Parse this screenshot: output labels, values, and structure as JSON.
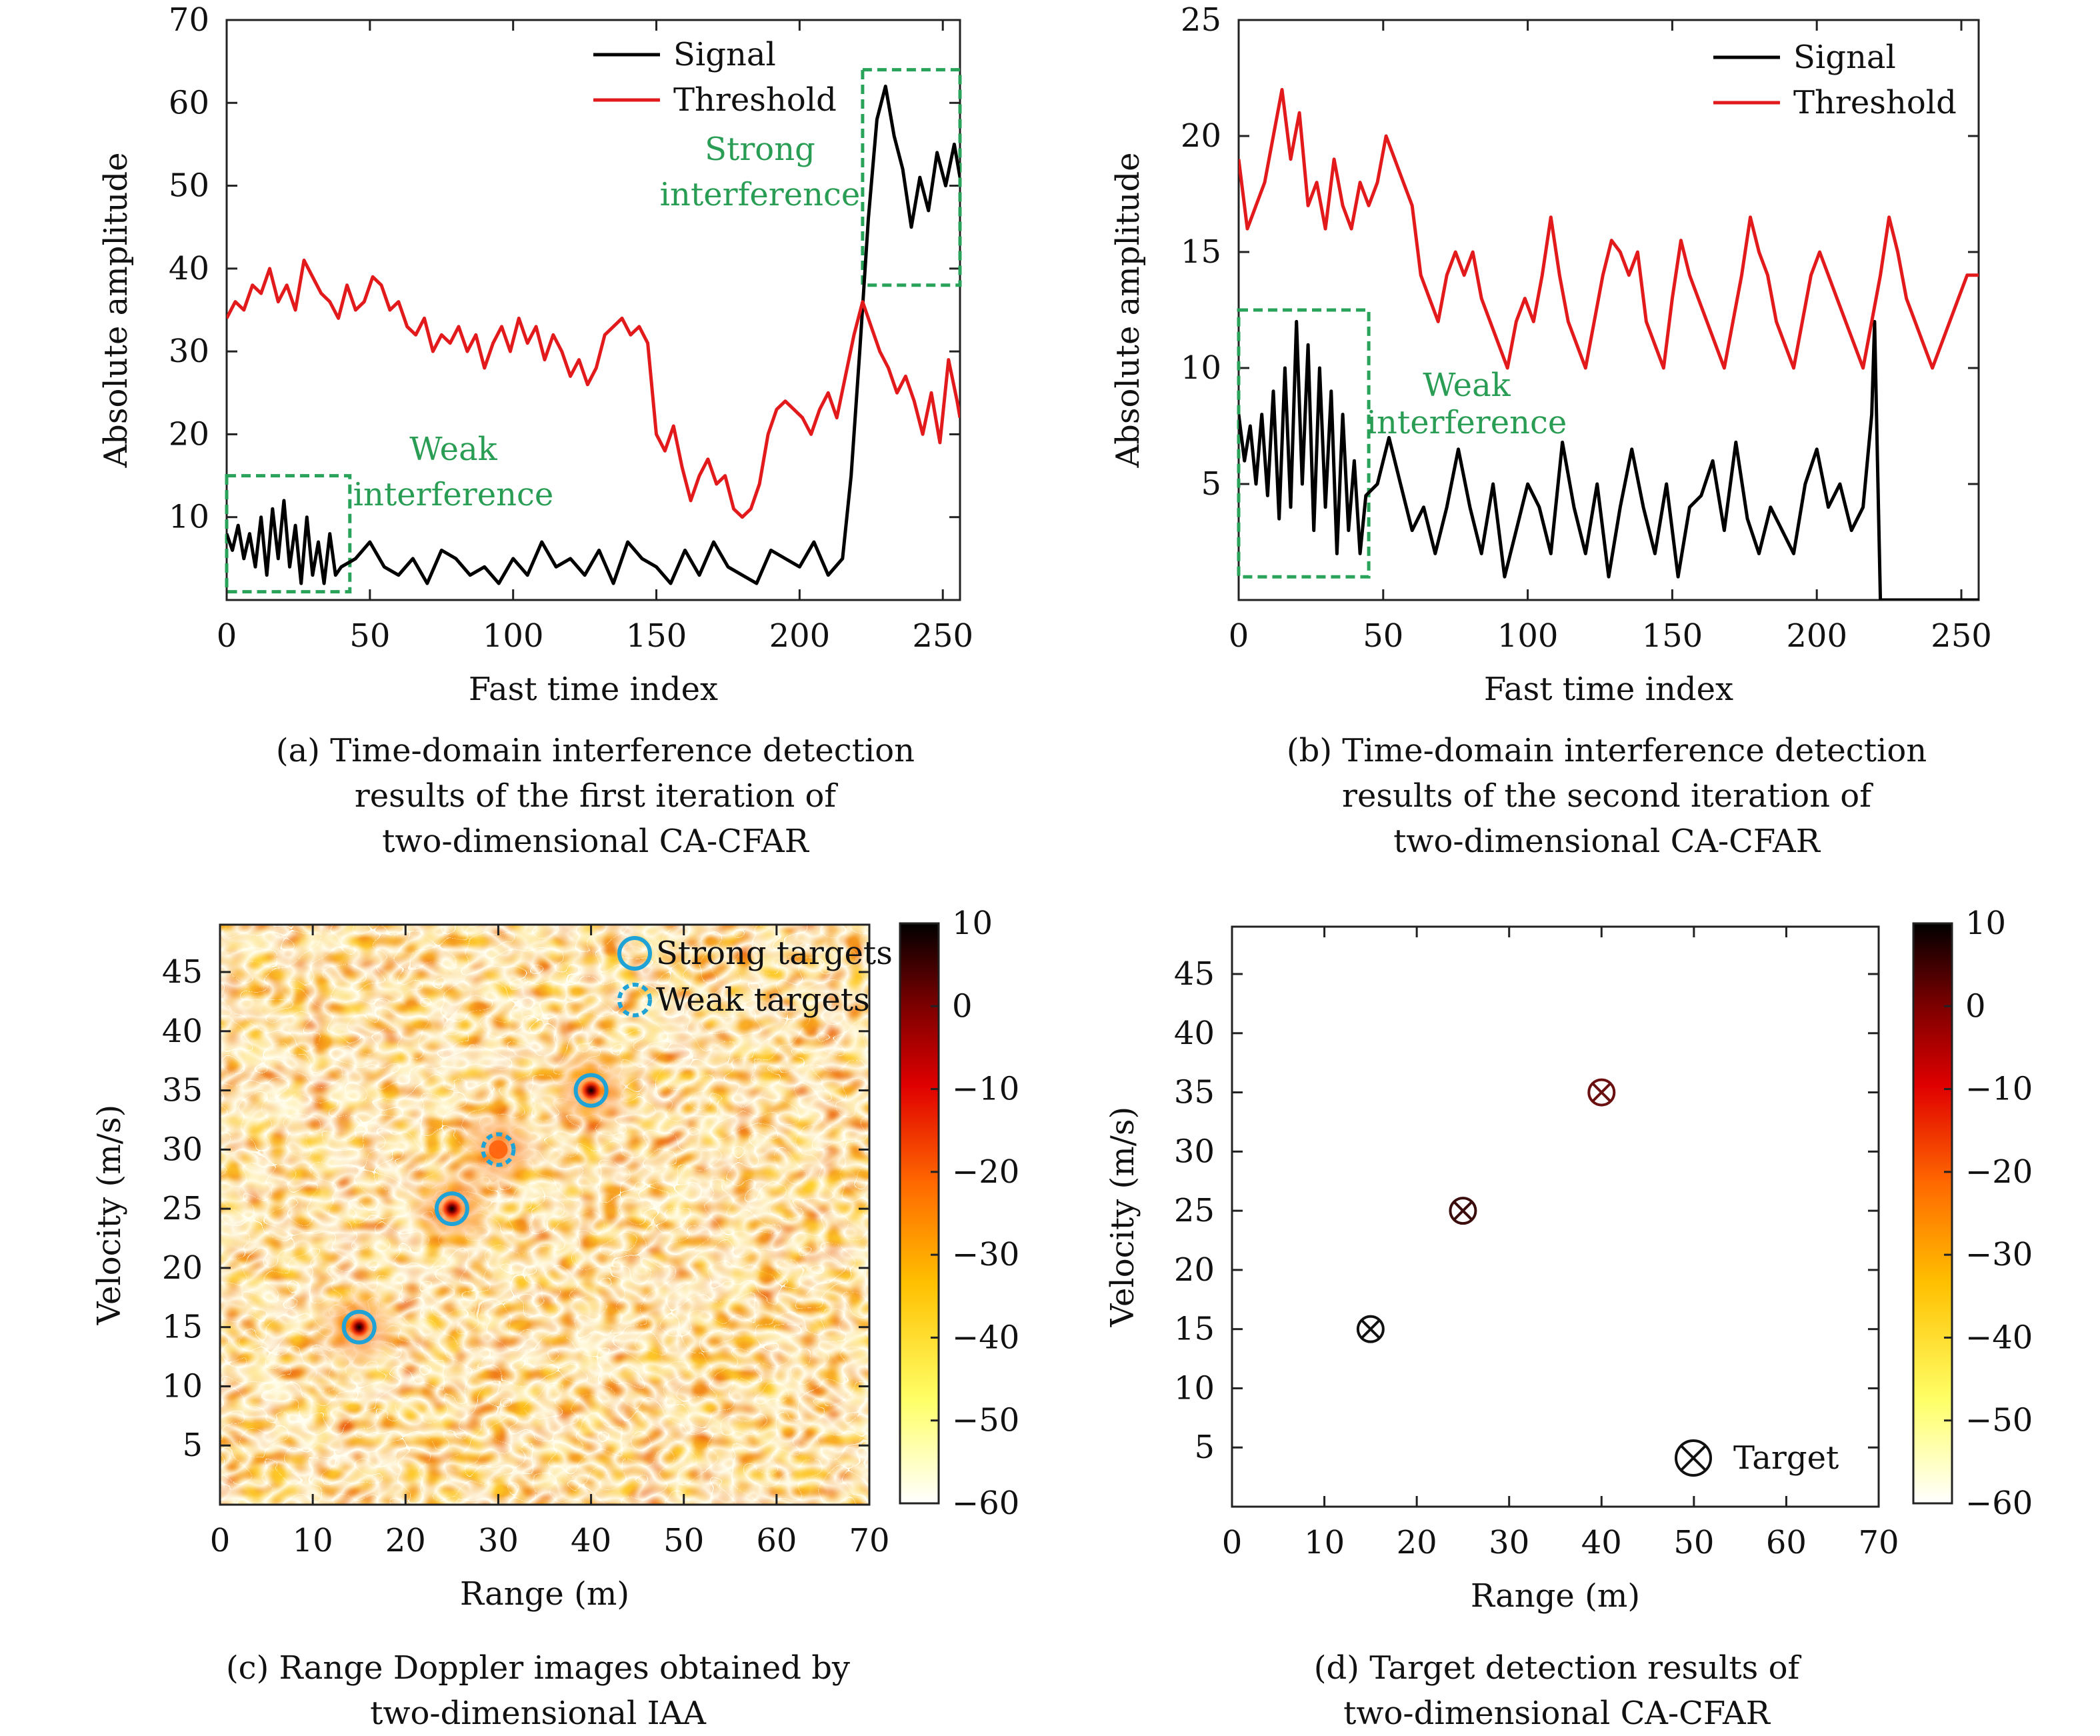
{
  "chart_data": [
    {
      "id": "a",
      "type": "line",
      "xlabel": "Fast time index",
      "ylabel": "Absolute amplitude",
      "xlim": [
        0,
        256
      ],
      "ylim": [
        0,
        70
      ],
      "xticks": [
        0,
        50,
        100,
        150,
        200,
        250
      ],
      "yticks": [
        10,
        20,
        30,
        40,
        50,
        60,
        70
      ],
      "legend": {
        "position": "top-right",
        "entries": [
          "Signal",
          "Threshold"
        ]
      },
      "series": [
        {
          "name": "Signal",
          "color": "#000000",
          "x": [
            0,
            2,
            4,
            6,
            8,
            10,
            12,
            14,
            16,
            18,
            20,
            22,
            24,
            26,
            28,
            30,
            32,
            34,
            36,
            38,
            40,
            45,
            50,
            55,
            60,
            65,
            70,
            75,
            80,
            85,
            90,
            95,
            100,
            105,
            110,
            115,
            120,
            125,
            130,
            135,
            140,
            145,
            150,
            155,
            160,
            165,
            170,
            175,
            180,
            185,
            190,
            195,
            200,
            205,
            210,
            215,
            218,
            221,
            224,
            227,
            230,
            233,
            236,
            239,
            242,
            245,
            248,
            251,
            254,
            256
          ],
          "values": [
            8,
            6,
            9,
            5,
            8,
            4,
            10,
            3,
            11,
            5,
            12,
            4,
            9,
            2,
            10,
            3,
            7,
            2,
            8,
            3,
            4,
            5,
            7,
            4,
            3,
            5,
            2,
            6,
            5,
            3,
            4,
            2,
            5,
            3,
            7,
            4,
            5,
            3,
            6,
            2,
            7,
            5,
            4,
            2,
            6,
            3,
            7,
            4,
            3,
            2,
            6,
            5,
            4,
            7,
            3,
            5,
            15,
            30,
            46,
            58,
            62,
            56,
            52,
            45,
            51,
            47,
            54,
            50,
            55,
            51
          ]
        },
        {
          "name": "Threshold",
          "color": "#e31a1c",
          "x": [
            0,
            3,
            6,
            9,
            12,
            15,
            18,
            21,
            24,
            27,
            30,
            33,
            36,
            39,
            42,
            45,
            48,
            51,
            54,
            57,
            60,
            63,
            66,
            69,
            72,
            75,
            78,
            81,
            84,
            87,
            90,
            93,
            96,
            99,
            102,
            105,
            108,
            111,
            114,
            117,
            120,
            123,
            126,
            129,
            132,
            135,
            138,
            141,
            144,
            147,
            150,
            153,
            156,
            159,
            162,
            165,
            168,
            171,
            174,
            177,
            180,
            183,
            186,
            189,
            192,
            195,
            198,
            201,
            204,
            207,
            210,
            213,
            216,
            219,
            222,
            225,
            228,
            231,
            234,
            237,
            240,
            243,
            246,
            249,
            252,
            255,
            256
          ],
          "values": [
            34,
            36,
            35,
            38,
            37,
            40,
            36,
            38,
            35,
            41,
            39,
            37,
            36,
            34,
            38,
            35,
            36,
            39,
            38,
            35,
            36,
            33,
            32,
            34,
            30,
            32,
            31,
            33,
            30,
            32,
            28,
            31,
            33,
            30,
            34,
            31,
            33,
            29,
            32,
            30,
            27,
            29,
            26,
            28,
            32,
            33,
            34,
            32,
            33,
            31,
            20,
            18,
            21,
            16,
            12,
            15,
            17,
            14,
            15,
            11,
            10,
            11,
            14,
            20,
            23,
            24,
            23,
            22,
            20,
            23,
            25,
            22,
            27,
            32,
            36,
            33,
            30,
            28,
            25,
            27,
            24,
            20,
            25,
            19,
            29,
            24,
            22
          ]
        }
      ],
      "annotations": [
        {
          "text_lines": [
            "Weak",
            "interference"
          ],
          "box": {
            "x": [
              0,
              43
            ],
            "y": [
              1,
              15
            ]
          }
        },
        {
          "text_lines": [
            "Strong",
            "interference"
          ],
          "box": {
            "x": [
              222,
              256
            ],
            "y": [
              38,
              64
            ]
          }
        }
      ]
    },
    {
      "id": "b",
      "type": "line",
      "xlabel": "Fast time index",
      "ylabel": "Absolute amplitude",
      "xlim": [
        0,
        256
      ],
      "ylim": [
        0,
        25
      ],
      "xticks": [
        0,
        50,
        100,
        150,
        200,
        250
      ],
      "yticks": [
        5,
        10,
        15,
        20,
        25
      ],
      "legend": {
        "position": "top-right",
        "entries": [
          "Signal",
          "Threshold"
        ]
      },
      "series": [
        {
          "name": "Signal",
          "color": "#000000",
          "x": [
            0,
            2,
            4,
            6,
            8,
            10,
            12,
            14,
            16,
            18,
            20,
            22,
            24,
            26,
            28,
            30,
            32,
            34,
            36,
            38,
            40,
            42,
            44,
            48,
            52,
            56,
            60,
            64,
            68,
            72,
            76,
            80,
            84,
            88,
            92,
            96,
            100,
            104,
            108,
            112,
            116,
            120,
            124,
            128,
            132,
            136,
            140,
            144,
            148,
            152,
            156,
            160,
            164,
            168,
            172,
            176,
            180,
            184,
            188,
            192,
            196,
            200,
            204,
            208,
            212,
            216,
            219,
            220,
            221,
            222,
            240,
            256
          ],
          "values": [
            8,
            6,
            7.5,
            5,
            8,
            4.5,
            9,
            3.5,
            10,
            4,
            12,
            5,
            11,
            3,
            10,
            4,
            9,
            2,
            8,
            3,
            6,
            2,
            4.5,
            5,
            7,
            5,
            3,
            4,
            2,
            4,
            6.5,
            4,
            2,
            5,
            1,
            3,
            5,
            4,
            2,
            6.8,
            4,
            2,
            5,
            1,
            4,
            6.5,
            4,
            2,
            5,
            1,
            4,
            4.5,
            6,
            3,
            6.8,
            3.5,
            2,
            4,
            3,
            2,
            5,
            6.5,
            4,
            5,
            3,
            4,
            8,
            12,
            6,
            0,
            0,
            0
          ]
        },
        {
          "name": "Threshold",
          "color": "#e31a1c",
          "x": [
            0,
            3,
            6,
            9,
            12,
            15,
            18,
            21,
            24,
            27,
            30,
            33,
            36,
            39,
            42,
            45,
            48,
            51,
            54,
            57,
            60,
            63,
            66,
            69,
            72,
            75,
            78,
            81,
            84,
            87,
            90,
            93,
            96,
            99,
            102,
            105,
            108,
            111,
            114,
            117,
            120,
            123,
            126,
            129,
            132,
            135,
            138,
            141,
            144,
            147,
            150,
            153,
            156,
            159,
            162,
            165,
            168,
            171,
            174,
            177,
            180,
            183,
            186,
            189,
            192,
            195,
            198,
            201,
            204,
            207,
            210,
            213,
            216,
            219,
            222,
            225,
            228,
            231,
            234,
            237,
            240,
            243,
            246,
            249,
            252,
            256
          ],
          "values": [
            19,
            16,
            17,
            18,
            20,
            22,
            19,
            21,
            17,
            18,
            16,
            19,
            17,
            16,
            18,
            17,
            18,
            20,
            19,
            18,
            17,
            14,
            13,
            12,
            14,
            15,
            14,
            15,
            13,
            12,
            11,
            10,
            12,
            13,
            12,
            14,
            16.5,
            14,
            12,
            11,
            10,
            12,
            14,
            15.5,
            15,
            14,
            15,
            12,
            11,
            10,
            13,
            15.5,
            14,
            13,
            12,
            11,
            10,
            12,
            14,
            16.5,
            15,
            14,
            12,
            11,
            10,
            12,
            14,
            15,
            14,
            13,
            12,
            11,
            10,
            12,
            14,
            16.5,
            15,
            13,
            12,
            11,
            10,
            11,
            12,
            13,
            14,
            14
          ]
        }
      ],
      "annotations": [
        {
          "text_lines": [
            "Weak",
            "interference"
          ],
          "box": {
            "x": [
              0,
              45
            ],
            "y": [
              1,
              12.5
            ]
          }
        }
      ]
    },
    {
      "id": "c",
      "type": "heatmap",
      "xlabel": "Range (m)",
      "ylabel": "Velocity (m/s)",
      "xlim": [
        0,
        70
      ],
      "ylim": [
        0,
        49
      ],
      "xticks": [
        0,
        10,
        20,
        30,
        40,
        50,
        60,
        70
      ],
      "yticks": [
        5,
        10,
        15,
        20,
        25,
        30,
        35,
        40,
        45
      ],
      "colorbar": {
        "min": -60,
        "max": 10,
        "ticks": [
          10,
          0,
          -10,
          -20,
          -30,
          -40,
          -50,
          -60
        ]
      },
      "colormap": [
        "#ffffff",
        "#ffff33",
        "#ffb000",
        "#ff5500",
        "#cc0000",
        "#660000",
        "#000000"
      ],
      "legend": {
        "position": "top-right",
        "entries": [
          "Strong targets",
          "Weak targets"
        ]
      },
      "strong_targets": [
        [
          15,
          15
        ],
        [
          25,
          25
        ],
        [
          40,
          35
        ]
      ],
      "weak_targets": [
        [
          30,
          30
        ]
      ]
    },
    {
      "id": "d",
      "type": "scatter",
      "xlabel": "Range (m)",
      "ylabel": "Velocity (m/s)",
      "xlim": [
        0,
        70
      ],
      "ylim": [
        0,
        49
      ],
      "xticks": [
        0,
        10,
        20,
        30,
        40,
        50,
        60,
        70
      ],
      "yticks": [
        5,
        10,
        15,
        20,
        25,
        30,
        35,
        40,
        45
      ],
      "colorbar": {
        "min": -60,
        "max": 10,
        "ticks": [
          10,
          0,
          -10,
          -20,
          -30,
          -40,
          -50,
          -60
        ]
      },
      "legend": {
        "position": "bottom-right",
        "entries": [
          "Target"
        ]
      },
      "points": [
        {
          "x": 15,
          "y": 15,
          "color": "#111111"
        },
        {
          "x": 25,
          "y": 25,
          "color": "#3a0c0c"
        },
        {
          "x": 40,
          "y": 35,
          "color": "#6b1010"
        }
      ]
    }
  ],
  "captions": {
    "a": [
      "(a) Time-domain interference detection",
      "results of the first iteration of",
      "two-dimensional CA-CFAR"
    ],
    "b": [
      "(b) Time-domain interference detection",
      "results of the second iteration of",
      "two-dimensional CA-CFAR"
    ],
    "c": [
      "(c) Range Doppler images obtained by",
      "two-dimensional IAA"
    ],
    "d": [
      "(d) Target detection results of",
      "two-dimensional CA-CFAR"
    ]
  },
  "colors": {
    "annotation_green": "#2a9d55",
    "box_green": "#2aa35a",
    "circle_blue": "#1fa3d6"
  }
}
